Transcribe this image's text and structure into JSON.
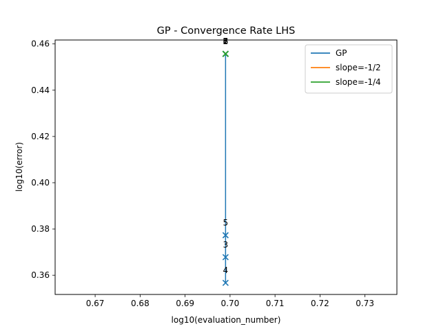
{
  "chart_data": {
    "type": "line",
    "title": "GP - Convergence Rate LHS",
    "xlabel": "log10(evaluation_number)",
    "ylabel": "log10(error)",
    "xlim": [
      0.6611,
      0.7371
    ],
    "ylim": [
      0.3517,
      0.4617
    ],
    "x_ticks": [
      0.67,
      0.68,
      0.69,
      0.7,
      0.71,
      0.72,
      0.73
    ],
    "x_tick_labels": [
      "0.67",
      "0.68",
      "0.69",
      "0.70",
      "0.71",
      "0.72",
      "0.73"
    ],
    "y_ticks": [
      0.36,
      0.38,
      0.4,
      0.42,
      0.44,
      0.46
    ],
    "y_tick_labels": [
      "0.36",
      "0.38",
      "0.40",
      "0.42",
      "0.44",
      "0.46"
    ],
    "grid": false,
    "legend_position": "top-right",
    "series": [
      {
        "name": "GP",
        "color": "#1f77b4",
        "marker": "x",
        "x": [
          0.699,
          0.699,
          0.699,
          0.699,
          0.699,
          0.699,
          0.699
        ],
        "y": [
          0.4557,
          0.4557,
          0.3678,
          0.3567,
          0.3773,
          0.4557,
          0.4557
        ]
      },
      {
        "name": "slope=-1/2",
        "color": "#ff7f0e",
        "x": [
          0.699,
          0.699
        ],
        "y": [
          0.4557,
          0.4557
        ]
      },
      {
        "name": "slope=-1/4",
        "color": "#2ca02c",
        "marker": "x",
        "x": [
          0.699,
          0.699
        ],
        "y": [
          0.4557,
          0.4557
        ]
      }
    ],
    "annotations": [
      {
        "text": "1",
        "x": 0.699,
        "y": 0.4557
      },
      {
        "text": "2",
        "x": 0.699,
        "y": 0.4557
      },
      {
        "text": "3",
        "x": 0.699,
        "y": 0.3678
      },
      {
        "text": "4",
        "x": 0.699,
        "y": 0.3567
      },
      {
        "text": "5",
        "x": 0.699,
        "y": 0.3773
      },
      {
        "text": "6",
        "x": 0.699,
        "y": 0.4557
      },
      {
        "text": "7",
        "x": 0.699,
        "y": 0.4557
      },
      {
        "text": "8",
        "x": 0.699,
        "y": 0.4557
      }
    ]
  }
}
